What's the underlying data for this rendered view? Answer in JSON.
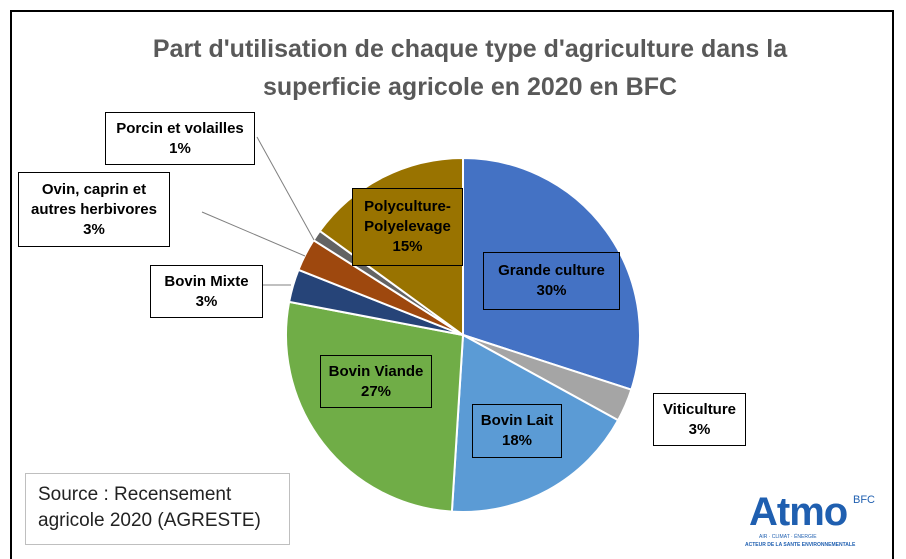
{
  "chart_data": {
    "type": "pie",
    "title": "Part d'utilisation de chaque type d'agriculture dans la superficie agricole en 2020 en BFC",
    "categories": [
      "Grande culture",
      "Viticulture",
      "Bovin Lait",
      "Bovin Viande",
      "Bovin Mixte",
      "Ovin, caprin et autres herbivores",
      "Porcin et volailles",
      "Polyculture-Polyelevage"
    ],
    "values": [
      30,
      3,
      18,
      27,
      3,
      3,
      1,
      15
    ],
    "value_labels": [
      "30%",
      "3%",
      "18%",
      "27%",
      "3%",
      "3%",
      "1%",
      "15%"
    ],
    "colors": [
      "#4472c4",
      "#a5a5a5",
      "#5b9bd5",
      "#70ad47",
      "#264478",
      "#9e480e",
      "#636363",
      "#997300"
    ],
    "source": "Source : Recensement agricole 2020 (AGRESTE)",
    "logo": {
      "name": "Atmo",
      "region": "BFC",
      "tagline": "AIR · CLIMAT · ÉNERGIE",
      "motto": "ACTEUR DE LA SANTE ENVIRONNEMENTALE"
    }
  }
}
